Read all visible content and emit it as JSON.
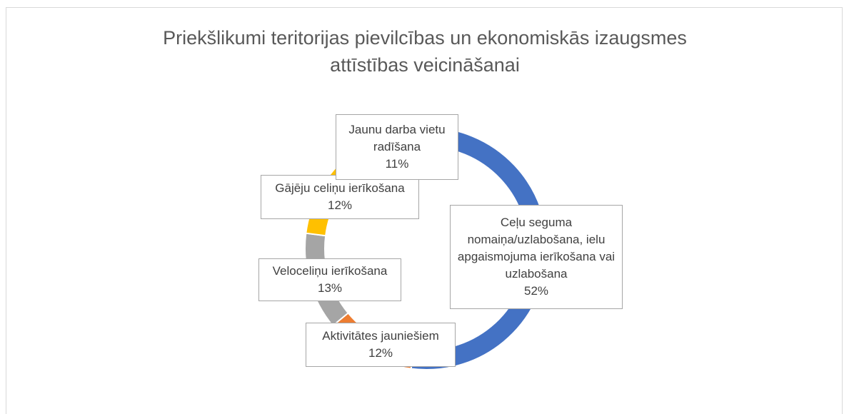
{
  "chart_data": {
    "type": "donut",
    "title": "Priekšlikumi teritorijas pievilcības un ekonomiskās izaugsmes attīstības veicināšanai",
    "categories": [
      "Ceļu seguma nomaiņa/uzlabošana, ielu apgaismojuma ierīkošana vai uzlabošana",
      "Aktivitātes jauniešiem",
      "Veloceliņu ierīkošana",
      "Gājēju celiņu ierīkošana",
      "Jaunu darba vietu radīšana"
    ],
    "values": [
      52,
      12,
      13,
      12,
      11
    ],
    "value_labels": [
      "52%",
      "12%",
      "13%",
      "12%",
      "11%"
    ],
    "colors": [
      "#4472c4",
      "#ed7d31",
      "#a5a5a5",
      "#ffc000",
      "#5b9bd5"
    ]
  }
}
